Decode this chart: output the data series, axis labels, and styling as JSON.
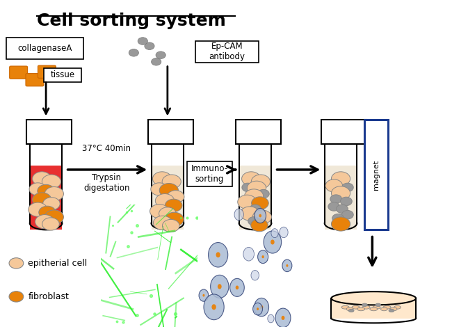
{
  "title": "Cell sorting system",
  "title_fontsize": 18,
  "background_color": "#ffffff",
  "epithelial_color": "#F5C89A",
  "fibroblast_color": "#E8820A",
  "grey_color": "#999999",
  "red_fill": "#E83030",
  "beige_fill": "#F0E8D8",
  "label_epithelial": "epitherial cell",
  "label_fibroblast": "fibroblast",
  "collagenase_label": "collagenaseA",
  "tissue_label": "tissue",
  "epcam_label": "Ep-CAM\nantibody",
  "temp_label": "37°C 40min",
  "trypsin_label": "Trypsin\ndigestation",
  "immuno_label": "Immuno-\nsorting",
  "magnet_label": "magnet",
  "magnet_box_color": "#1a3a8f"
}
